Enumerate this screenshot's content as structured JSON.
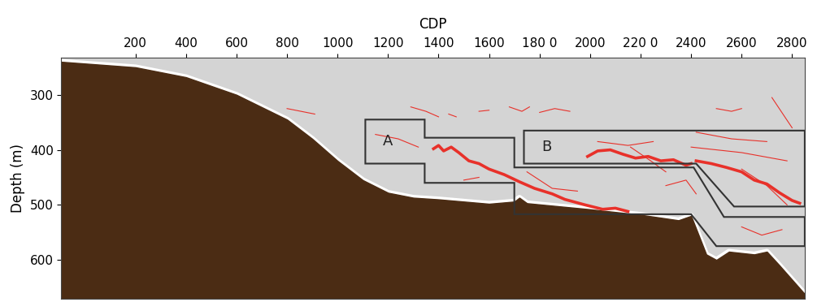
{
  "chart_data": {
    "type": "section",
    "x_label": "CDP",
    "y_label": "Depth (m)",
    "xlim": [
      -94,
      2850
    ],
    "ylim": [
      671,
      232
    ],
    "xticks": [
      200,
      400,
      600,
      800,
      1000,
      1200,
      1400,
      1600,
      {
        "value": 1800,
        "label": "180 0"
      },
      2000,
      {
        "value": 2200,
        "label": "220 0"
      },
      2400,
      2600,
      2800
    ],
    "yticks": [
      300,
      400,
      500,
      600
    ],
    "seabed": {
      "color": "#4b2c14",
      "x": [
        -94,
        200,
        400,
        600,
        800,
        900,
        1000,
        1100,
        1200,
        1300,
        1400,
        1600,
        1700,
        1720,
        1750,
        2000,
        2200,
        2350,
        2400,
        2430,
        2460,
        2500,
        2550,
        2650,
        2700,
        2750,
        2850
      ],
      "values": [
        240,
        250,
        268,
        300,
        345,
        380,
        420,
        455,
        478,
        487,
        490,
        498,
        494,
        487,
        497,
        508,
        518,
        528,
        520,
        555,
        590,
        600,
        585,
        590,
        585,
        610,
        662
      ]
    },
    "reflectors": {
      "color": "#e8312a",
      "thick": [
        [
          [
            1380,
            398
          ],
          [
            1400,
            392
          ],
          [
            1420,
            402
          ],
          [
            1450,
            395
          ],
          [
            1480,
            405
          ],
          [
            1520,
            420
          ],
          [
            1560,
            425
          ],
          [
            1600,
            435
          ],
          [
            1660,
            445
          ],
          [
            1720,
            458
          ],
          [
            1780,
            470
          ],
          [
            1850,
            480
          ],
          [
            1900,
            490
          ],
          [
            1980,
            500
          ],
          [
            2050,
            508
          ],
          [
            2100,
            506
          ],
          [
            2150,
            512
          ]
        ],
        [
          [
            1990,
            412
          ],
          [
            2030,
            402
          ],
          [
            2080,
            400
          ],
          [
            2130,
            408
          ],
          [
            2180,
            415
          ],
          [
            2230,
            412
          ],
          [
            2280,
            420
          ],
          [
            2330,
            418
          ],
          [
            2380,
            428
          ],
          [
            2400,
            425
          ]
        ],
        [
          [
            2420,
            420
          ],
          [
            2480,
            425
          ],
          [
            2540,
            432
          ],
          [
            2600,
            440
          ],
          [
            2650,
            455
          ],
          [
            2700,
            462
          ],
          [
            2750,
            478
          ],
          [
            2800,
            492
          ],
          [
            2830,
            497
          ]
        ]
      ],
      "thin": [
        [
          [
            800,
            325
          ],
          [
            910,
            335
          ]
        ],
        [
          [
            1290,
            322
          ],
          [
            1350,
            330
          ],
          [
            1400,
            340
          ]
        ],
        [
          [
            1440,
            335
          ],
          [
            1470,
            340
          ]
        ],
        [
          [
            1560,
            330
          ],
          [
            1600,
            328
          ]
        ],
        [
          [
            1680,
            322
          ],
          [
            1730,
            330
          ],
          [
            1760,
            322
          ]
        ],
        [
          [
            1800,
            332
          ],
          [
            1860,
            325
          ],
          [
            1920,
            330
          ]
        ],
        [
          [
            2500,
            325
          ],
          [
            2560,
            330
          ],
          [
            2600,
            325
          ]
        ],
        [
          [
            2720,
            305
          ],
          [
            2800,
            360
          ]
        ],
        [
          [
            1150,
            372
          ],
          [
            1240,
            380
          ],
          [
            1320,
            395
          ]
        ],
        [
          [
            2030,
            385
          ],
          [
            2150,
            392
          ],
          [
            2250,
            385
          ]
        ],
        [
          [
            2420,
            368
          ],
          [
            2560,
            380
          ],
          [
            2700,
            385
          ]
        ],
        [
          [
            2400,
            395
          ],
          [
            2600,
            405
          ],
          [
            2780,
            420
          ]
        ],
        [
          [
            1500,
            455
          ],
          [
            1560,
            450
          ]
        ],
        [
          [
            1750,
            440
          ],
          [
            1850,
            470
          ],
          [
            1950,
            475
          ]
        ],
        [
          [
            2300,
            465
          ],
          [
            2380,
            455
          ],
          [
            2420,
            480
          ]
        ],
        [
          [
            2600,
            435
          ],
          [
            2700,
            465
          ],
          [
            2780,
            500
          ]
        ],
        [
          [
            2600,
            540
          ],
          [
            2680,
            555
          ],
          [
            2760,
            545
          ]
        ],
        [
          [
            2160,
            395
          ],
          [
            2240,
            420
          ],
          [
            2300,
            440
          ]
        ]
      ]
    },
    "boxes": [
      {
        "label": "A",
        "points": [
          [
            1110,
            345
          ],
          [
            1345,
            345
          ],
          [
            1345,
            378
          ],
          [
            1700,
            378
          ],
          [
            1700,
            432
          ],
          [
            2410,
            432
          ],
          [
            2530,
            522
          ],
          [
            2850,
            522
          ],
          [
            2850,
            575
          ],
          [
            2500,
            575
          ],
          [
            2400,
            517
          ],
          [
            1700,
            517
          ],
          [
            1700,
            460
          ],
          [
            1345,
            460
          ],
          [
            1345,
            425
          ],
          [
            1110,
            425
          ]
        ]
      },
      {
        "label": "B",
        "points": [
          [
            1738,
            365
          ],
          [
            2850,
            365
          ],
          [
            2850,
            503
          ],
          [
            2570,
            503
          ],
          [
            2420,
            425
          ],
          [
            1738,
            425
          ]
        ]
      }
    ]
  }
}
